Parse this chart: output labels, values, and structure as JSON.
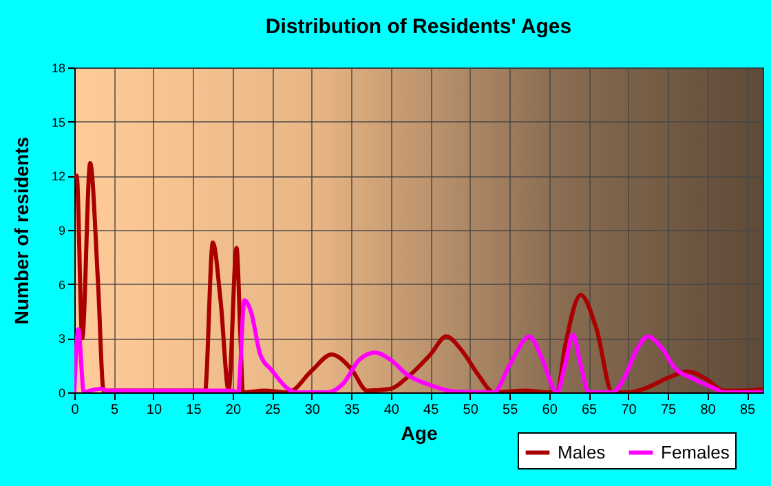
{
  "chart_data": {
    "type": "line",
    "title": "Distribution of Residents' Ages",
    "xlabel": "Age",
    "ylabel": "Number of residents",
    "xlim": [
      0,
      87
    ],
    "xticks": [
      0,
      5,
      10,
      15,
      20,
      25,
      30,
      35,
      40,
      45,
      50,
      55,
      60,
      65,
      70,
      75,
      80,
      85
    ],
    "ylim": [
      0,
      18
    ],
    "yticks": [
      0,
      3,
      6,
      9,
      12,
      15,
      18
    ],
    "grid": true,
    "legend": "bottom",
    "line_style": "solid",
    "marker": "none",
    "series": [
      {
        "name": "Males",
        "color": "#aa0000",
        "x": [
          0,
          0.3,
          1,
          2,
          3,
          3.7,
          5,
          10,
          16,
          16.5,
          17.5,
          18.5,
          19.5,
          20.5,
          21,
          21.3,
          24,
          27,
          30,
          32.5,
          35,
          37,
          40,
          42,
          45,
          47,
          49,
          51,
          53,
          57,
          60,
          61,
          62,
          64,
          66,
          68,
          70,
          72,
          75,
          77.5,
          80,
          82,
          85,
          87
        ],
        "values": [
          12,
          12,
          3,
          12.7,
          6,
          0.1,
          0.1,
          0.1,
          0.1,
          0,
          8.3,
          5,
          0.1,
          8,
          3,
          0,
          0.1,
          0,
          1.2,
          2.1,
          1.3,
          0.1,
          0.2,
          0.8,
          2.1,
          3.1,
          2.3,
          1,
          0,
          0.1,
          0,
          0,
          2.5,
          5.4,
          3.5,
          0,
          0,
          0.2,
          0.8,
          1.15,
          0.7,
          0.1,
          0.1,
          0.2
        ]
      },
      {
        "name": "Females",
        "color": "#ff00ff",
        "x": [
          0,
          0.5,
          1.2,
          2,
          3.5,
          4,
          10,
          16,
          20,
          20.7,
          21.5,
          22.3,
          23.5,
          25,
          27,
          28,
          32,
          34,
          36,
          38,
          40,
          42,
          45,
          48,
          53,
          55,
          57.5,
          59,
          61,
          62,
          63,
          64,
          65,
          68,
          69.5,
          71,
          72.5,
          74,
          76,
          78,
          81,
          82,
          87
        ],
        "values": [
          0,
          3.5,
          0,
          0.1,
          0.2,
          0.1,
          0.1,
          0.1,
          0.1,
          0,
          5.1,
          4.5,
          2.1,
          1.2,
          0.2,
          0,
          0,
          0.5,
          1.8,
          2.2,
          1.8,
          1,
          0.4,
          0.05,
          0,
          1.5,
          3.1,
          2,
          0,
          1.5,
          3.2,
          1.5,
          0,
          0,
          0.8,
          2.3,
          3.1,
          2.6,
          1.3,
          0.8,
          0.2,
          0,
          0
        ]
      }
    ]
  }
}
